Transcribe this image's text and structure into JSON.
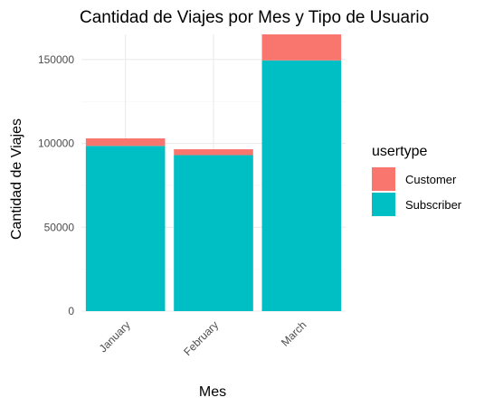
{
  "chart_data": {
    "type": "bar",
    "stacked": true,
    "title": "Cantidad de Viajes por Mes y Tipo de Usuario",
    "xlabel": "Mes",
    "ylabel": "Cantidad de Viajes",
    "categories": [
      "January",
      "February",
      "March"
    ],
    "series": [
      {
        "name": "Subscriber",
        "color": "#00BFC4",
        "values": [
          98500,
          93000,
          149500
        ]
      },
      {
        "name": "Customer",
        "color": "#F8766D",
        "values": [
          4500,
          3500,
          15500
        ]
      }
    ],
    "ylim": [
      0,
      165000
    ],
    "yticks": [
      0,
      50000,
      100000,
      150000
    ],
    "ytick_labels": [
      "0",
      "50000",
      "100000",
      "150000"
    ],
    "grid": true,
    "legend": {
      "title": "usertype",
      "placement": "right",
      "entries": [
        {
          "label": "Customer",
          "color": "#F8766D"
        },
        {
          "label": "Subscriber",
          "color": "#00BFC4"
        }
      ]
    }
  }
}
